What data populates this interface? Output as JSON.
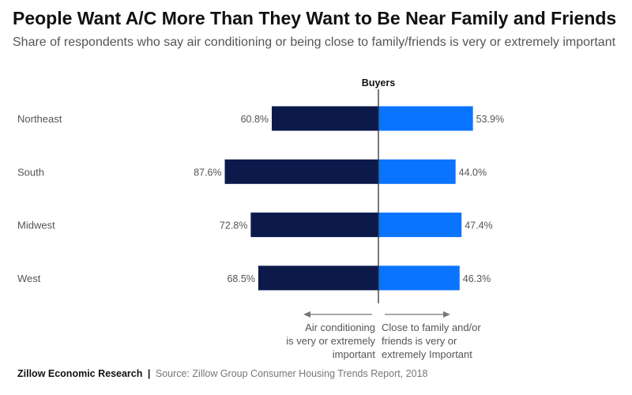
{
  "colors": {
    "left_bar": "#0b1a4a",
    "right_bar": "#0a74ff",
    "axis": "#333333",
    "arrow": "#777777",
    "text": "#555555"
  },
  "header": {
    "title": "People Want A/C More Than They Want to Be Near Family and Friends",
    "subtitle": "Share of respondents who say air conditioning or being close to family/friends is very or extremely important"
  },
  "footer": {
    "brand": "Zillow Economic Research",
    "separator": "|",
    "source": "Source: Zillow Group Consumer Housing Trends Report, 2018"
  },
  "chart_data": {
    "type": "bar",
    "orientation": "horizontal-diverging",
    "center_label": "Buyers",
    "categories": [
      "Northeast",
      "South",
      "Midwest",
      "West"
    ],
    "series": [
      {
        "name": "Air conditioning is very or extremely important",
        "side": "left",
        "values": [
          60.8,
          87.6,
          72.8,
          68.5
        ],
        "labels": [
          "60.8%",
          "87.6%",
          "72.8%",
          "68.5%"
        ]
      },
      {
        "name": "Close to family and/or friends is very or extremely Important",
        "side": "right",
        "values": [
          53.9,
          44.0,
          47.4,
          46.3
        ],
        "labels": [
          "53.9%",
          "44.0%",
          "47.4%",
          "46.3%"
        ]
      }
    ],
    "axis_notes": {
      "left_lines": [
        "Air conditioning",
        "is very or extremely",
        "important"
      ],
      "right_lines": [
        "Close to family and/or",
        "friends is very or",
        "extremely Important"
      ]
    },
    "value_unit": "%",
    "xlim": [
      0,
      100
    ],
    "grid": false,
    "legend": "none"
  }
}
